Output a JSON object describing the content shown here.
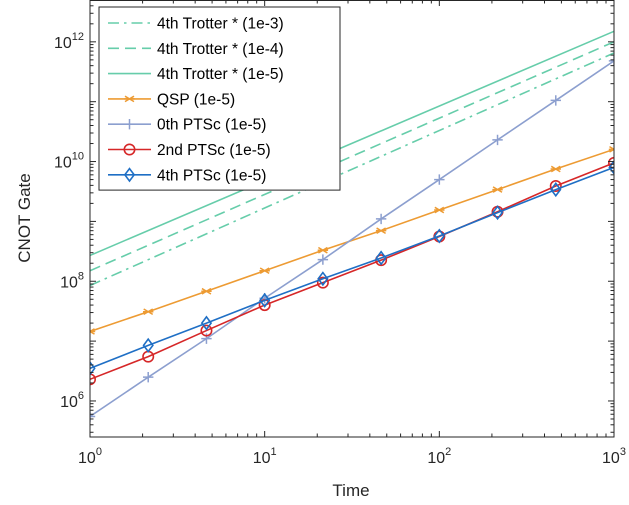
{
  "chart_data": {
    "type": "line",
    "title": "",
    "xlabel": "Time",
    "ylabel": "CNOT Gate",
    "xscale": "log",
    "yscale": "log",
    "xlim": [
      1,
      1000
    ],
    "ylim": [
      250000,
      5000000000000
    ],
    "grid": false,
    "legend_position": "top-left",
    "x_ticks": [
      {
        "base": "10",
        "exp": "0",
        "value": 1
      },
      {
        "base": "10",
        "exp": "1",
        "value": 10
      },
      {
        "base": "10",
        "exp": "2",
        "value": 100
      },
      {
        "base": "10",
        "exp": "3",
        "value": 1000
      }
    ],
    "y_ticks": [
      {
        "base": "10",
        "exp": "6",
        "value": 1000000
      },
      {
        "base": "10",
        "exp": "8",
        "value": 100000000
      },
      {
        "base": "10",
        "exp": "10",
        "value": 10000000000
      },
      {
        "base": "10",
        "exp": "12",
        "value": 1000000000000
      }
    ],
    "series": [
      {
        "name": "4th Trotter * (1e-3)",
        "color": "#66cdaa",
        "dash": "dashdot",
        "marker": "none",
        "x": [
          1,
          1000
        ],
        "y": [
          85000000,
          650000000000
        ]
      },
      {
        "name": "4th Trotter * (1e-4)",
        "color": "#66cdaa",
        "dash": "dashed",
        "marker": "none",
        "x": [
          1,
          1000
        ],
        "y": [
          150000000,
          1000000000000
        ]
      },
      {
        "name": "4th Trotter * (1e-5)",
        "color": "#66cdaa",
        "dash": "solid",
        "marker": "none",
        "x": [
          1,
          1000
        ],
        "y": [
          270000000,
          1500000000000
        ]
      },
      {
        "name": "QSP (1e-5)",
        "color": "#ed9b33",
        "dash": "solid",
        "marker": "asterisk",
        "x": [
          1,
          2.154,
          4.642,
          10,
          21.54,
          46.42,
          100,
          215.4,
          464.2,
          1000
        ],
        "y": [
          14500000,
          31000000,
          68000000,
          150000000,
          330000000,
          700000000,
          1550000000,
          3400000000,
          7500000000,
          16000000000
        ]
      },
      {
        "name": "0th PTSc (1e-5)",
        "color": "#8c9fcf",
        "dash": "solid",
        "marker": "plus",
        "x": [
          1,
          2.154,
          4.642,
          10,
          21.54,
          46.42,
          100,
          215.4,
          464.2,
          1000
        ],
        "y": [
          550000,
          2500000,
          11000000,
          52000000,
          230000000,
          1100000000,
          5000000000,
          23000000000,
          105000000000,
          480000000000
        ]
      },
      {
        "name": "2nd PTSc (1e-5)",
        "color": "#d62728",
        "dash": "solid",
        "marker": "circle",
        "x": [
          1,
          2.154,
          4.642,
          10,
          21.54,
          46.42,
          100,
          215.4,
          464.2,
          1000
        ],
        "y": [
          2300000,
          5500000,
          15000000,
          40000000,
          95000000,
          225000000,
          560000000,
          1450000000,
          3900000000,
          9500000000
        ]
      },
      {
        "name": "4th PTSc (1e-5)",
        "color": "#1f6fc5",
        "dash": "solid",
        "marker": "diamond",
        "x": [
          1,
          2.154,
          4.642,
          10,
          21.54,
          46.42,
          100,
          215.4,
          464.2,
          1000
        ],
        "y": [
          3500000,
          8500000,
          20000000,
          48000000,
          110000000,
          245000000,
          570000000,
          1400000000,
          3400000000,
          8000000000
        ]
      }
    ]
  }
}
